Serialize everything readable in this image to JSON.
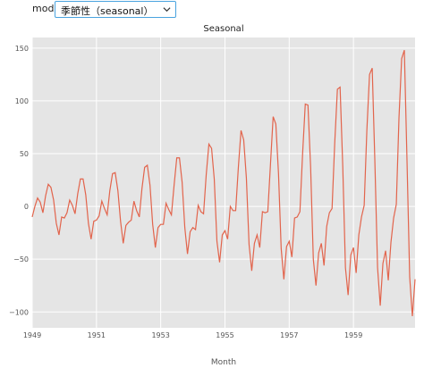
{
  "mode": {
    "label": "mode",
    "selected": "季節性（seasonal）"
  },
  "colors": {
    "line": "#e2644c",
    "plot_bg": "#e5e5e5",
    "grid": "#ffffff"
  },
  "chart_data": {
    "type": "line",
    "title": "Seasonal",
    "xlabel": "Month",
    "ylabel": "",
    "grid": true,
    "x_start_year": 1949,
    "points_per_year": 12,
    "xlim": [
      1949,
      1960.917
    ],
    "ylim": [
      -115,
      160
    ],
    "x_ticks": [
      1949,
      1951,
      1953,
      1955,
      1957,
      1959
    ],
    "x_tick_labels": [
      "1949",
      "1951",
      "1953",
      "1955",
      "1957",
      "1959"
    ],
    "y_ticks": [
      150,
      100,
      50,
      0,
      -50,
      -100
    ],
    "y_tick_labels": [
      "150",
      "100",
      "50",
      "0",
      "−50",
      "−100"
    ],
    "series": [
      {
        "values": [
          -10,
          0,
          8,
          4,
          -6,
          10,
          21,
          18,
          6,
          -16,
          -27,
          -10,
          -11,
          -6,
          6,
          1,
          -7,
          12,
          26,
          26,
          11,
          -16,
          -31,
          -14,
          -13,
          -9,
          5,
          -2,
          -8,
          15,
          31,
          32,
          15,
          -14,
          -35,
          -18,
          -15,
          -13,
          5,
          -4,
          -10,
          17,
          37,
          39,
          20,
          -17,
          -39,
          -20,
          -17,
          -17,
          3,
          -3,
          -8,
          20,
          46,
          46,
          23,
          -20,
          -45,
          -24,
          -20,
          -22,
          1,
          -5,
          -7,
          30,
          59,
          55,
          26,
          -33,
          -53,
          -27,
          -23,
          -31,
          0,
          -4,
          -4,
          37,
          72,
          63,
          27,
          -36,
          -61,
          -35,
          -27,
          -39,
          -5,
          -6,
          -5,
          40,
          85,
          78,
          31,
          -40,
          -69,
          -38,
          -33,
          -48,
          -11,
          -10,
          -5,
          50,
          97,
          96,
          37,
          -50,
          -75,
          -44,
          -35,
          -56,
          -19,
          -6,
          -2,
          60,
          111,
          113,
          38,
          -58,
          -84,
          -46,
          -39,
          -63,
          -27,
          -10,
          1,
          72,
          125,
          131,
          42,
          -58,
          -94,
          -54,
          -42,
          -70,
          -34,
          -11,
          2,
          84,
          140,
          148,
          43,
          -67,
          -104,
          -69
        ]
      }
    ]
  }
}
